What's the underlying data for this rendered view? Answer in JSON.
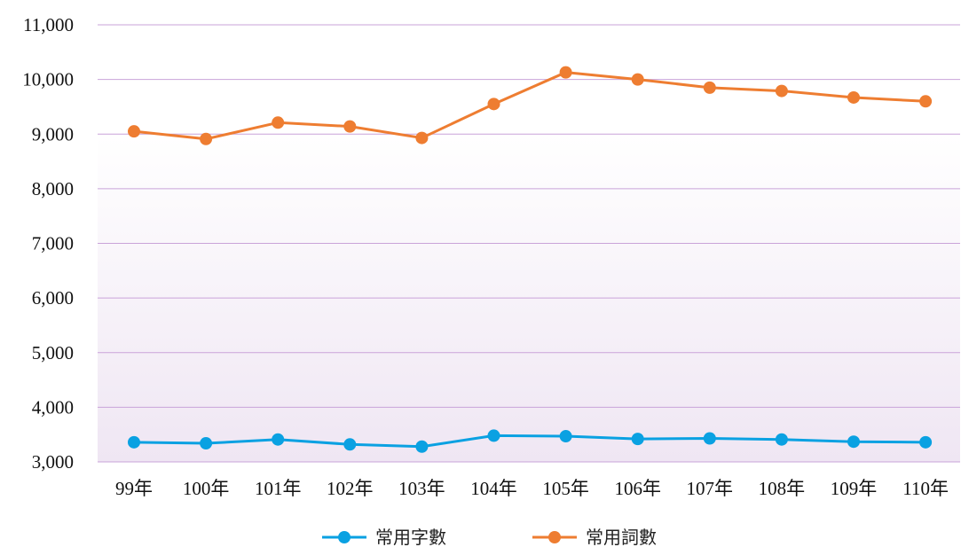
{
  "chart_data": {
    "type": "line",
    "title": "",
    "xlabel": "",
    "ylabel": "",
    "ylim": [
      3000,
      11000
    ],
    "yticks": [
      "3,000",
      "4,000",
      "5,000",
      "6,000",
      "7,000",
      "8,000",
      "9,000",
      "10,000",
      "11,000"
    ],
    "categories": [
      "99年",
      "100年",
      "101年",
      "102年",
      "103年",
      "104年",
      "105年",
      "106年",
      "107年",
      "108年",
      "109年",
      "110年"
    ],
    "grid": true,
    "legend_position": "bottom",
    "series": [
      {
        "name": "常用字數",
        "color": "#0aa1e2",
        "values": [
          3360,
          3340,
          3410,
          3320,
          3280,
          3480,
          3470,
          3420,
          3430,
          3410,
          3370,
          3360
        ]
      },
      {
        "name": "常用詞數",
        "color": "#ee7d31",
        "values": [
          9050,
          8910,
          9210,
          9140,
          8930,
          9550,
          10130,
          10000,
          9850,
          9790,
          9670,
          9600
        ]
      }
    ],
    "colors": {
      "gridline": "#c9a3d9",
      "plot_background_top": "#ffffff",
      "plot_background_bottom": "#efe6f3"
    }
  }
}
